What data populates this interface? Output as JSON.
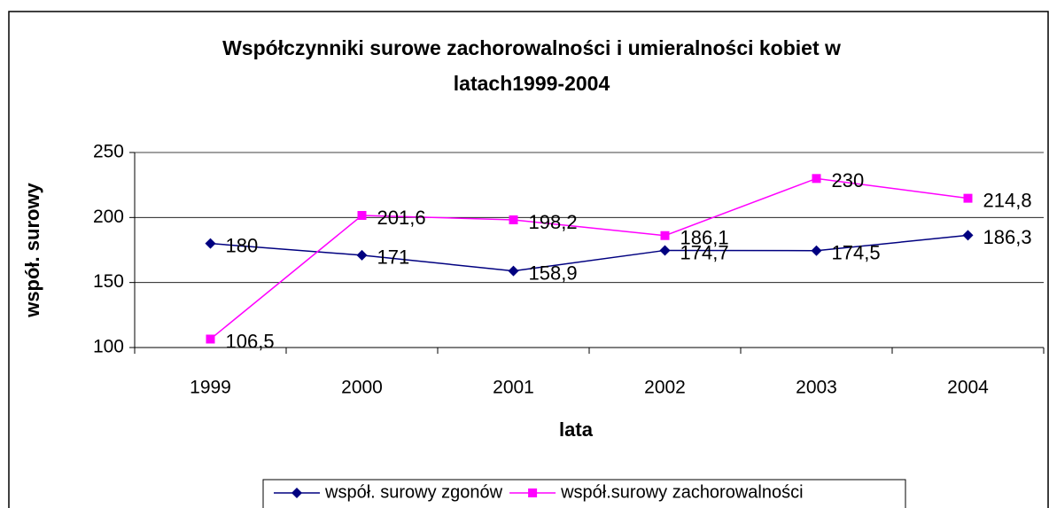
{
  "chart_data": {
    "type": "line",
    "title": [
      "Współczynniki surowe zachorowalności i umieralności kobiet  w",
      "latach1999-2004"
    ],
    "xlabel": "lata",
    "ylabel": "współ. surowy",
    "categories": [
      "1999",
      "2000",
      "2001",
      "2002",
      "2003",
      "2004"
    ],
    "series": [
      {
        "name": "współ. surowy zgonów",
        "color": "#000080",
        "marker": "diamond",
        "values": [
          180,
          171,
          158.9,
          174.7,
          174.5,
          186.3
        ],
        "value_labels": [
          "180",
          "171",
          "158,9",
          "174,7",
          "174,5",
          "186,3"
        ]
      },
      {
        "name": "współ.surowy zachorowalności",
        "color": "#ff00ff",
        "marker": "square",
        "values": [
          106.5,
          201.6,
          198.2,
          186.1,
          230,
          214.8
        ],
        "value_labels": [
          "106,5",
          "201,6",
          "198,2",
          "186,1",
          "230",
          "214,8"
        ]
      }
    ],
    "ylim": [
      100,
      250
    ],
    "yticks": [
      100,
      150,
      200,
      250
    ],
    "grid": true,
    "legend": "bottom"
  }
}
